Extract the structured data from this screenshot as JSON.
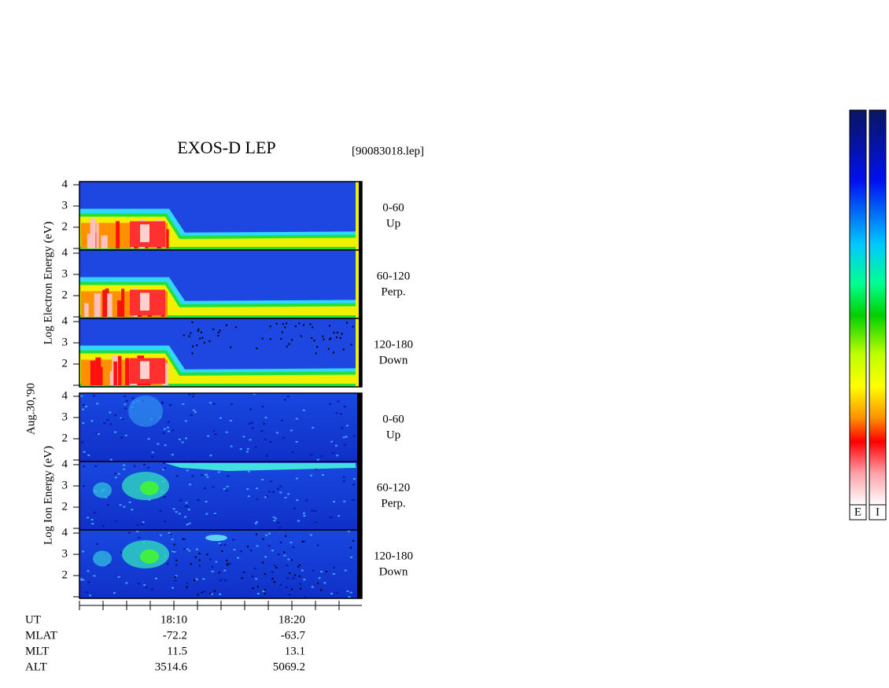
{
  "header": {
    "title": "EXOS-D LEP",
    "file": "[90083018.lep]"
  },
  "date": "Aug.30,'90",
  "electron": {
    "axis_label": "Log  Electron  Energy (eV)",
    "panels": [
      {
        "range": "0-60",
        "direction": "Up",
        "yticks": [
          4,
          3,
          2
        ]
      },
      {
        "range": "60-120",
        "direction": "Perp.",
        "yticks": [
          4,
          3,
          2
        ]
      },
      {
        "range": "120-180",
        "direction": "Down",
        "yticks": [
          4,
          3,
          2
        ]
      }
    ]
  },
  "ion": {
    "axis_label": "Log  Ion  Energy (eV)",
    "panels": [
      {
        "range": "0-60",
        "direction": "Up",
        "yticks": [
          4,
          3,
          2
        ]
      },
      {
        "range": "60-120",
        "direction": "Perp.",
        "yticks": [
          4,
          3,
          2
        ]
      },
      {
        "range": "120-180",
        "direction": "Down",
        "yticks": [
          4,
          3,
          2
        ]
      }
    ]
  },
  "table": {
    "rows": [
      [
        "UT",
        "18:10",
        "18:20"
      ],
      [
        "MLAT",
        "-72.2",
        "-63.7"
      ],
      [
        "MLT",
        "11.5",
        "13.1"
      ],
      [
        "ALT",
        "3514.6",
        "5069.2"
      ]
    ]
  },
  "colorbars": [
    "E",
    "I"
  ]
}
